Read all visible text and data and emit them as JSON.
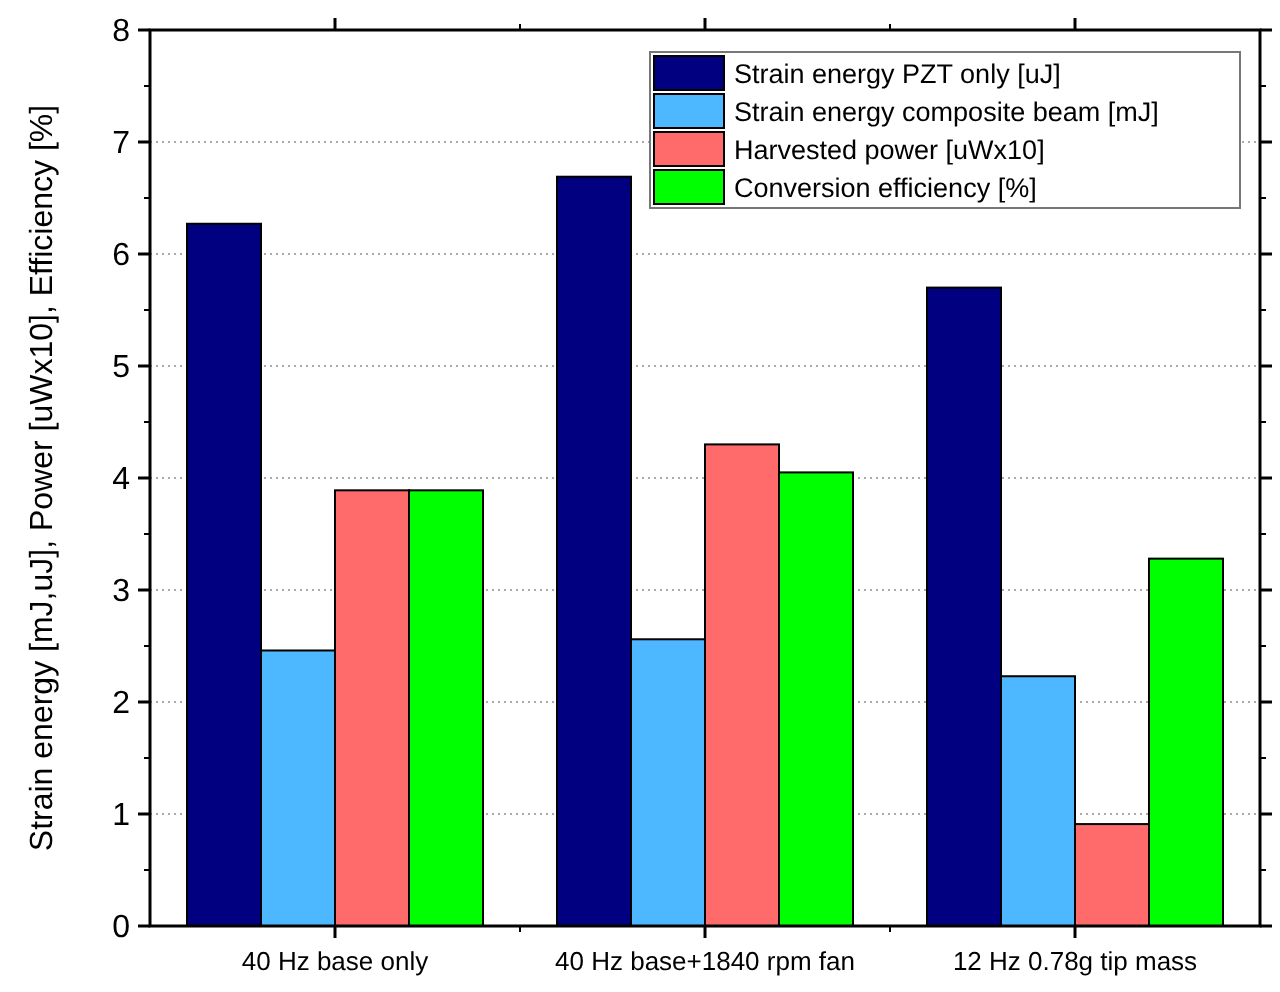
{
  "chart_data": {
    "type": "bar",
    "ylabel": "Strain energy [mJ,uJ], Power [uWx10], Efficiency [%]",
    "categories": [
      "40 Hz base only",
      "40 Hz base+1840 rpm fan",
      "12 Hz 0.78g tip mass"
    ],
    "series": [
      {
        "name": "Strain energy PZT only [uJ]",
        "color": "#000080",
        "values": [
          6.27,
          6.69,
          5.7
        ]
      },
      {
        "name": "Strain energy composite beam [mJ]",
        "color": "#4db8ff",
        "values": [
          2.46,
          2.56,
          2.23
        ]
      },
      {
        "name": "Harvested power [uWx10]",
        "color": "#ff6b6b",
        "values": [
          3.89,
          4.3,
          0.91
        ]
      },
      {
        "name": "Conversion efficiency [%]",
        "color": "#00ff00",
        "values": [
          3.89,
          4.05,
          3.28
        ]
      }
    ],
    "ylim": [
      0,
      8
    ],
    "yticks": [
      0,
      1,
      2,
      3,
      4,
      5,
      6,
      7,
      8
    ],
    "grid": "y",
    "legend": "top right"
  }
}
